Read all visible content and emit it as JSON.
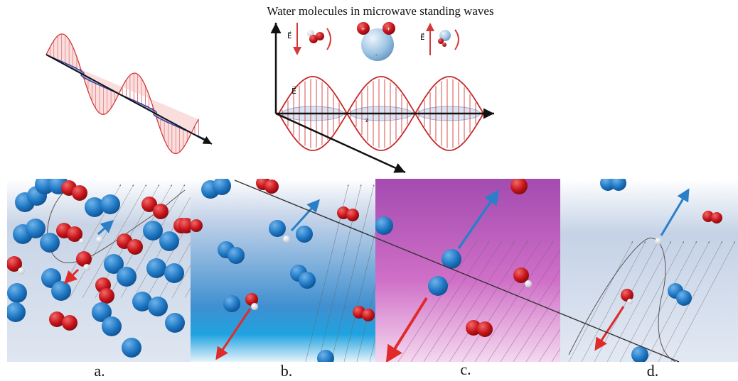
{
  "title": "Water molecules in microwave standing waves",
  "field_label": "E⃗",
  "axis_label_z": "z",
  "panels": [
    {
      "label": "a."
    },
    {
      "label": "b."
    },
    {
      "label": "c."
    },
    {
      "label": "d."
    }
  ],
  "colors": {
    "wave_red": "#d33a3a",
    "wave_red_fill": "#f4b3b3",
    "wave_blue": "#2a3f9e",
    "wave_blue_fill": "#c9d2f0",
    "molecule_blue": "#1f78c4",
    "molecule_red": "#c8141a",
    "arrow_blue": "#2a7fc8",
    "arrow_red": "#e02b2b",
    "panel_c_top": "#a34bb0",
    "panel_c_bottom": "#f5d8ef",
    "panel_b_bottom": "#1fa3e0"
  }
}
